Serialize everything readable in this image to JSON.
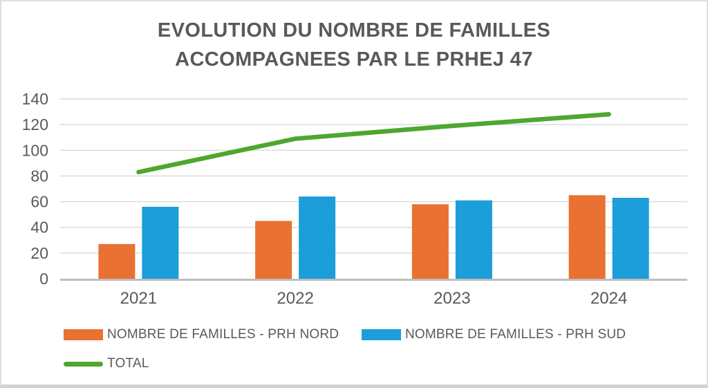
{
  "chart_data": {
    "type": "bar",
    "title": "EVOLUTION DU NOMBRE DE FAMILLES ACCOMPAGNEES PAR LE PRHEJ 47",
    "categories": [
      "2021",
      "2022",
      "2023",
      "2024"
    ],
    "series": [
      {
        "name": "NOMBRE DE FAMILLES - PRH NORD",
        "type": "bar",
        "color": "#E97132",
        "values": [
          27,
          45,
          58,
          65
        ]
      },
      {
        "name": "NOMBRE DE FAMILLES - PRH SUD",
        "type": "bar",
        "color": "#1B9ED9",
        "values": [
          56,
          64,
          61,
          63
        ]
      },
      {
        "name": "TOTAL",
        "type": "line",
        "color": "#4EA72E",
        "values": [
          83,
          109,
          119,
          128
        ]
      }
    ],
    "ylim": [
      0,
      140
    ],
    "yticks": [
      0,
      20,
      40,
      60,
      80,
      100,
      120,
      140
    ],
    "grid": true,
    "legend_position": "bottom-left"
  },
  "colors": {
    "gridline": "#D9D9D9",
    "axis_line": "#BFBFBF",
    "label_text": "#595959",
    "frame_border": "#DEDEDE"
  }
}
